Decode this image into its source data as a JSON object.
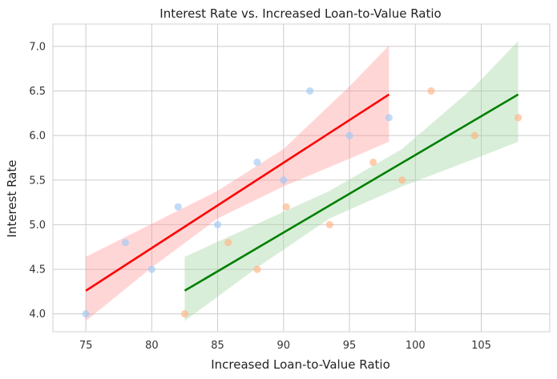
{
  "chart_data": {
    "type": "scatter",
    "title": "Interest Rate vs. Increased Loan-to-Value Ratio",
    "xlabel": "Increased Loan-to-Value Ratio",
    "ylabel": "Interest Rate",
    "xlim": [
      72.5,
      110.2
    ],
    "ylim": [
      3.8,
      7.25
    ],
    "xticks": [
      75,
      80,
      85,
      90,
      95,
      100,
      105
    ],
    "yticks": [
      4.0,
      4.5,
      5.0,
      5.5,
      6.0,
      6.5,
      7.0
    ],
    "grid": true,
    "legend": "none",
    "series": [
      {
        "color": "#a1c9f4",
        "line_color": "#ff0000",
        "band_color": "#ff9999",
        "points": [
          {
            "x": 75,
            "y": 4.0
          },
          {
            "x": 78,
            "y": 4.8
          },
          {
            "x": 80,
            "y": 4.5
          },
          {
            "x": 82,
            "y": 5.2
          },
          {
            "x": 85,
            "y": 5.0
          },
          {
            "x": 88,
            "y": 5.7
          },
          {
            "x": 90,
            "y": 5.5
          },
          {
            "x": 92,
            "y": 6.5
          },
          {
            "x": 95,
            "y": 6.0
          },
          {
            "x": 98,
            "y": 6.2
          }
        ],
        "regression": {
          "x": [
            75,
            98
          ],
          "y": [
            4.26,
            6.46
          ]
        },
        "ci_band": {
          "x": [
            75,
            80,
            85,
            90,
            95,
            98
          ],
          "lower": [
            3.92,
            4.52,
            5.07,
            5.43,
            5.74,
            5.93
          ],
          "upper": [
            4.64,
            5.01,
            5.38,
            5.85,
            6.55,
            7.01
          ]
        }
      },
      {
        "color": "#ffb482",
        "line_color": "#008000",
        "band_color": "#9fd49f",
        "points": [
          {
            "x": 82.5,
            "y": 4.0
          },
          {
            "x": 85.8,
            "y": 4.8
          },
          {
            "x": 88.0,
            "y": 4.5
          },
          {
            "x": 90.2,
            "y": 5.2
          },
          {
            "x": 93.5,
            "y": 5.0
          },
          {
            "x": 96.8,
            "y": 5.7
          },
          {
            "x": 99.0,
            "y": 5.5
          },
          {
            "x": 101.2,
            "y": 6.5
          },
          {
            "x": 104.5,
            "y": 6.0
          },
          {
            "x": 107.8,
            "y": 6.2
          }
        ],
        "regression": {
          "x": [
            82.5,
            107.8
          ],
          "y": [
            4.26,
            6.46
          ]
        },
        "ci_band": {
          "x": [
            82.5,
            88,
            93.5,
            99,
            104.5,
            107.8
          ],
          "lower": [
            3.92,
            4.52,
            5.07,
            5.43,
            5.74,
            5.93
          ],
          "upper": [
            4.64,
            5.01,
            5.38,
            5.85,
            6.55,
            7.06
          ]
        }
      }
    ]
  }
}
